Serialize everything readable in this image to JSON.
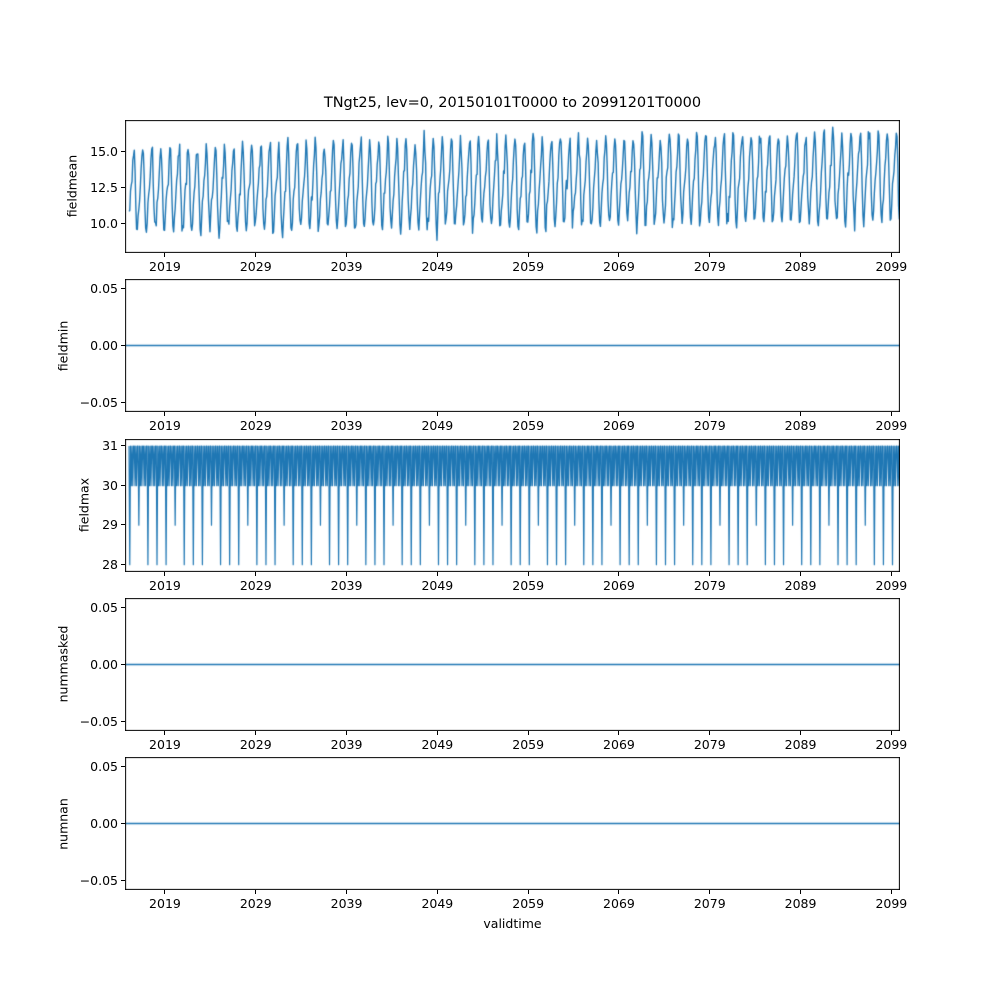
{
  "figure": {
    "title": "TNgt25, lev=0, 20150101T0000 to 20991201T0000",
    "xlabel": "validtime",
    "line_color": "#1f77b4",
    "background": "#ffffff"
  },
  "chart_data": [
    {
      "type": "line",
      "name": "fieldmean",
      "ylabel": "fieldmean",
      "xlim": [
        2014.6,
        2099.95
      ],
      "ylim": [
        8.0,
        17.2
      ],
      "yticks": [
        10.0,
        12.5,
        15.0
      ],
      "ytick_labels": [
        "10.0",
        "12.5",
        "15.0"
      ],
      "xticks": [
        2019,
        2029,
        2039,
        2049,
        2059,
        2069,
        2079,
        2089,
        2099
      ],
      "xtick_labels": [
        "2019",
        "2029",
        "2039",
        "2049",
        "2059",
        "2069",
        "2079",
        "2089",
        "2099"
      ],
      "observed_range": [
        8.5,
        16.6
      ],
      "series": {
        "kind": "seasonal",
        "start_year": 2015,
        "end_year": 2100,
        "samples_per_year": 12,
        "mean_start": 12.3,
        "mean_end": 13.3,
        "amplitude_start": 2.55,
        "amplitude_end": 2.8,
        "second_harmonic": 0.3,
        "noise_sigma": 0.3,
        "seed": 42
      }
    },
    {
      "type": "line",
      "name": "fieldmin",
      "ylabel": "fieldmin",
      "xlim": [
        2014.6,
        2099.95
      ],
      "ylim": [
        -0.058,
        0.058
      ],
      "yticks": [
        -0.05,
        0.0,
        0.05
      ],
      "ytick_labels": [
        "−0.05",
        "0.00",
        "0.05"
      ],
      "xticks": [
        2019,
        2029,
        2039,
        2049,
        2059,
        2069,
        2079,
        2089,
        2099
      ],
      "xtick_labels": [
        "2019",
        "2029",
        "2039",
        "2049",
        "2059",
        "2069",
        "2079",
        "2089",
        "2099"
      ],
      "series": {
        "kind": "constant",
        "value": 0.0
      }
    },
    {
      "type": "line",
      "name": "fieldmax",
      "ylabel": "fieldmax",
      "xlim": [
        2014.6,
        2099.95
      ],
      "ylim": [
        27.82,
        31.18
      ],
      "yticks": [
        28,
        29,
        30,
        31
      ],
      "ytick_labels": [
        "28",
        "29",
        "30",
        "31"
      ],
      "xticks": [
        2019,
        2029,
        2039,
        2049,
        2059,
        2069,
        2079,
        2089,
        2099
      ],
      "xtick_labels": [
        "2019",
        "2029",
        "2039",
        "2049",
        "2059",
        "2069",
        "2079",
        "2089",
        "2099"
      ],
      "observed_values": [
        28,
        29,
        30,
        31
      ],
      "series": {
        "kind": "days_in_month",
        "start_year": 2015,
        "end_year": 2100
      }
    },
    {
      "type": "line",
      "name": "nummasked",
      "ylabel": "nummasked",
      "xlim": [
        2014.6,
        2099.95
      ],
      "ylim": [
        -0.058,
        0.058
      ],
      "yticks": [
        -0.05,
        0.0,
        0.05
      ],
      "ytick_labels": [
        "−0.05",
        "0.00",
        "0.05"
      ],
      "xticks": [
        2019,
        2029,
        2039,
        2049,
        2059,
        2069,
        2079,
        2089,
        2099
      ],
      "xtick_labels": [
        "2019",
        "2029",
        "2039",
        "2049",
        "2059",
        "2069",
        "2079",
        "2089",
        "2099"
      ],
      "series": {
        "kind": "constant",
        "value": 0.0
      }
    },
    {
      "type": "line",
      "name": "numnan",
      "ylabel": "numnan",
      "xlim": [
        2014.6,
        2099.95
      ],
      "ylim": [
        -0.058,
        0.058
      ],
      "yticks": [
        -0.05,
        0.0,
        0.05
      ],
      "ytick_labels": [
        "−0.05",
        "0.00",
        "0.05"
      ],
      "xticks": [
        2019,
        2029,
        2039,
        2049,
        2059,
        2069,
        2079,
        2089,
        2099
      ],
      "xtick_labels": [
        "2019",
        "2029",
        "2039",
        "2049",
        "2059",
        "2069",
        "2079",
        "2089",
        "2099"
      ],
      "series": {
        "kind": "constant",
        "value": 0.0
      }
    }
  ]
}
